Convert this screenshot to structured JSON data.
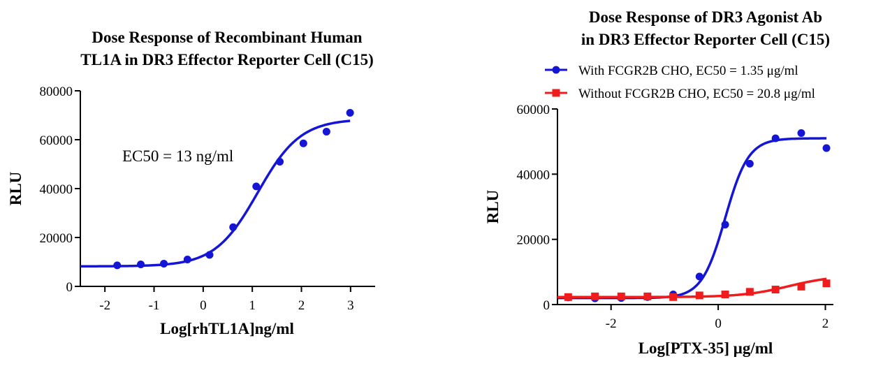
{
  "chart_data": [
    {
      "type": "scatter",
      "title_line1": "Dose Response of Recombinant Human",
      "title_line2": "TL1A in DR3 Effector Reporter Cell (C15)",
      "xlabel": "Log[rhTL1A]ng/ml",
      "ylabel": "RLU",
      "xlim": [
        -2.5,
        3.5
      ],
      "ylim": [
        0,
        80000
      ],
      "xticks": [
        -2,
        -1,
        0,
        1,
        2,
        3
      ],
      "xtick_labels": [
        "-2",
        "-1",
        "0",
        "1",
        "2",
        "3"
      ],
      "yticks": [
        0,
        20000,
        40000,
        60000,
        80000
      ],
      "ytick_labels": [
        "0",
        "20000",
        "40000",
        "60000",
        "80000"
      ],
      "annotation": "EC50 = 13 ng/ml",
      "series": [
        {
          "color": "#1515d6",
          "marker": "circle",
          "x": [
            -1.75,
            -1.27,
            -0.8,
            -0.32,
            0.13,
            0.61,
            1.08,
            1.56,
            2.04,
            2.51,
            2.99
          ],
          "y": [
            8600,
            9000,
            9300,
            11000,
            12900,
            24200,
            40900,
            51000,
            58500,
            63300,
            71000
          ],
          "fit": {
            "bottom": 8200,
            "top": 68500,
            "logEC50": 1.11,
            "hill": 1.0
          }
        }
      ]
    },
    {
      "type": "scatter",
      "title_line1": "Dose Response of DR3 Agonist Ab",
      "title_line2": "in DR3 Effector Reporter Cell (C15)",
      "xlabel": "Log[PTX-35] μg/ml",
      "ylabel": "RLU",
      "xlim": [
        -3,
        2.15
      ],
      "ylim": [
        0,
        60000
      ],
      "xticks": [
        -2,
        0,
        2
      ],
      "xtick_labels": [
        "-2",
        "0",
        "2"
      ],
      "yticks": [
        0,
        20000,
        40000,
        60000
      ],
      "ytick_labels": [
        "0",
        "20000",
        "40000",
        "60000"
      ],
      "legend": "top",
      "series": [
        {
          "name": "With FCGR2B CHO, EC50 = 1.35 μg/ml",
          "color": "#1515d6",
          "marker": "circle",
          "x": [
            -2.8,
            -2.3,
            -1.81,
            -1.32,
            -0.84,
            -0.35,
            0.13,
            0.59,
            1.07,
            1.55,
            2.02
          ],
          "y": [
            2200,
            1900,
            2000,
            2300,
            3100,
            8600,
            24500,
            43200,
            51000,
            52600,
            48000
          ],
          "fit": {
            "bottom": 2000,
            "top": 51000,
            "logEC50": 0.13,
            "hill": 2.0
          }
        },
        {
          "name": "Without FCGR2B CHO, EC50 = 20.8 μg/ml",
          "color": "#ee1c1c",
          "marker": "square",
          "x": [
            -2.8,
            -2.3,
            -1.81,
            -1.32,
            -0.84,
            -0.35,
            0.13,
            0.59,
            1.07,
            1.55,
            2.02
          ],
          "y": [
            2300,
            2500,
            2500,
            2500,
            2300,
            2800,
            3100,
            3900,
            4600,
            5500,
            6500
          ],
          "fit": {
            "bottom": 2300,
            "top": 9000,
            "logEC50": 1.32,
            "hill": 1.0
          }
        }
      ]
    }
  ]
}
